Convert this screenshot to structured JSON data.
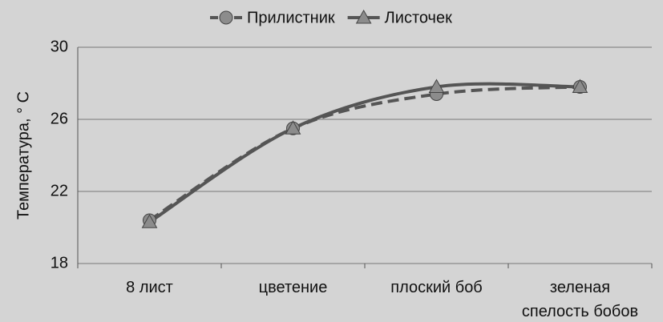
{
  "chart_data": {
    "type": "line",
    "y_label": "Температура, ° С",
    "categories": [
      "8 лист",
      "цветение",
      "плоский боб",
      "зеленая спелость бобов"
    ],
    "series": [
      {
        "name": "Прилистник",
        "color": "#555555",
        "marker": "circle",
        "dash": true,
        "values": [
          20.4,
          25.5,
          27.4,
          27.8
        ]
      },
      {
        "name": "Листочек",
        "color": "#555555",
        "marker": "triangle",
        "dash": false,
        "values": [
          20.3,
          25.5,
          27.8,
          27.8
        ]
      }
    ],
    "ylim": [
      18,
      30
    ],
    "yticks": [
      18,
      22,
      26,
      30
    ],
    "grid": true
  }
}
